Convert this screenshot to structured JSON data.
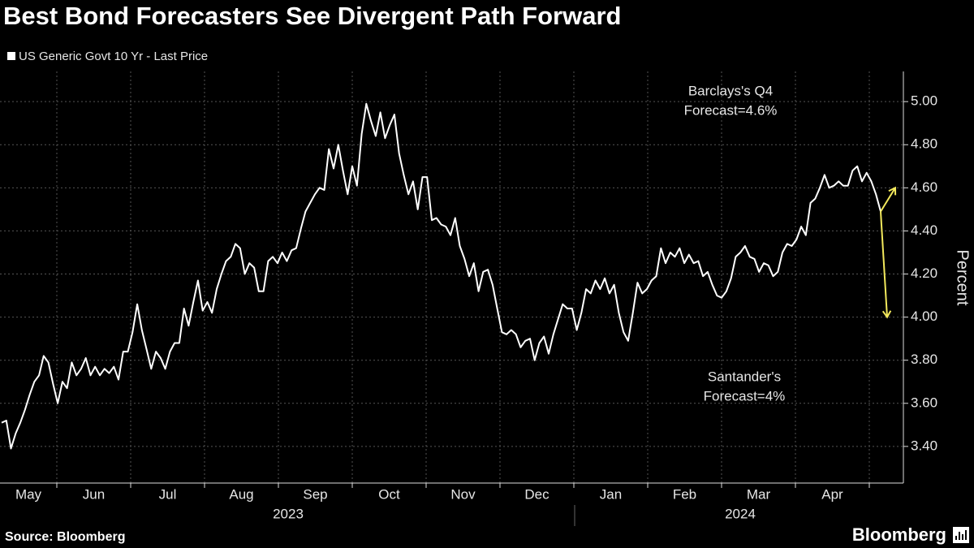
{
  "chart_data": {
    "type": "line",
    "title": "Best Bond Forecasters See Divergent Path Forward",
    "y_label": "Percent",
    "source": "Source: Bloomberg",
    "brand": "Bloomberg",
    "months": [
      "May",
      "Jun",
      "Jul",
      "Aug",
      "Sep",
      "Oct",
      "Nov",
      "Dec",
      "Jan",
      "Feb",
      "Mar",
      "Apr"
    ],
    "years": [
      "2023",
      "2024"
    ],
    "ylim": [
      3.23,
      5.14
    ],
    "yticks": [
      {
        "value": 3.4,
        "label": "3.40"
      },
      {
        "value": 3.6,
        "label": "3.60"
      },
      {
        "value": 3.8,
        "label": "3.80"
      },
      {
        "value": 4.0,
        "label": "4.00"
      },
      {
        "value": 4.2,
        "label": "4.20"
      },
      {
        "value": 4.4,
        "label": "4.40"
      },
      {
        "value": 4.6,
        "label": "4.60"
      },
      {
        "value": 4.8,
        "label": "4.80"
      },
      {
        "value": 5.0,
        "label": "5.00"
      }
    ],
    "grid": true,
    "series": [
      {
        "name": "US Generic Govt 10 Yr - Last Price",
        "color": "#ffffff",
        "values": [
          3.51,
          3.52,
          3.39,
          3.46,
          3.51,
          3.57,
          3.64,
          3.7,
          3.73,
          3.82,
          3.79,
          3.69,
          3.6,
          3.7,
          3.67,
          3.79,
          3.73,
          3.76,
          3.81,
          3.73,
          3.77,
          3.73,
          3.76,
          3.74,
          3.77,
          3.71,
          3.84,
          3.84,
          3.93,
          4.06,
          3.94,
          3.85,
          3.76,
          3.84,
          3.81,
          3.76,
          3.84,
          3.88,
          3.88,
          4.04,
          3.96,
          4.07,
          4.17,
          4.03,
          4.07,
          4.02,
          4.13,
          4.2,
          4.26,
          4.28,
          4.34,
          4.32,
          4.2,
          4.25,
          4.23,
          4.12,
          4.12,
          4.26,
          4.28,
          4.25,
          4.3,
          4.26,
          4.31,
          4.32,
          4.41,
          4.49,
          4.53,
          4.57,
          4.6,
          4.59,
          4.78,
          4.69,
          4.8,
          4.68,
          4.57,
          4.7,
          4.61,
          4.85,
          4.99,
          4.91,
          4.84,
          4.95,
          4.83,
          4.89,
          4.94,
          4.76,
          4.66,
          4.57,
          4.63,
          4.5,
          4.65,
          4.65,
          4.45,
          4.46,
          4.43,
          4.42,
          4.38,
          4.46,
          4.33,
          4.27,
          4.19,
          4.25,
          4.12,
          4.21,
          4.22,
          4.15,
          4.04,
          3.93,
          3.92,
          3.94,
          3.92,
          3.86,
          3.89,
          3.9,
          3.8,
          3.88,
          3.91,
          3.83,
          3.92,
          3.99,
          4.06,
          4.04,
          4.04,
          3.94,
          4.02,
          4.13,
          4.11,
          4.17,
          4.13,
          4.18,
          4.11,
          4.15,
          4.02,
          3.93,
          3.89,
          4.02,
          4.16,
          4.11,
          4.13,
          4.17,
          4.19,
          4.32,
          4.25,
          4.3,
          4.28,
          4.32,
          4.25,
          4.29,
          4.25,
          4.26,
          4.19,
          4.21,
          4.15,
          4.1,
          4.09,
          4.12,
          4.18,
          4.28,
          4.3,
          4.33,
          4.28,
          4.27,
          4.21,
          4.25,
          4.24,
          4.19,
          4.21,
          4.3,
          4.34,
          4.33,
          4.36,
          4.42,
          4.38,
          4.53,
          4.55,
          4.6,
          4.66,
          4.6,
          4.61,
          4.63,
          4.61,
          4.61,
          4.68,
          4.7,
          4.63,
          4.67,
          4.63,
          4.57,
          4.49
        ]
      }
    ],
    "forecasts": [
      {
        "text": [
          "Barclays's Q4",
          "Forecast=4.6%"
        ],
        "value": 4.6,
        "color": "#f2e85c"
      },
      {
        "text": [
          "Santander's",
          "Forecast=4%"
        ],
        "value": 4.0,
        "color": "#f2e85c"
      }
    ]
  }
}
